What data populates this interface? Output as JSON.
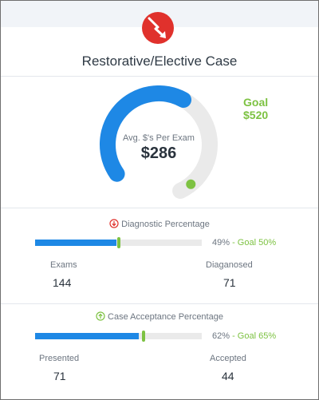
{
  "header": {
    "badge_icon": "falling-arrow-icon",
    "title": "Restorative/Elective Case"
  },
  "gauge": {
    "label": "Avg. $'s Per Exam",
    "value": "$286",
    "goal_label": "Goal",
    "goal_value": "$520",
    "fraction": 0.55,
    "colors": {
      "fill": "#1e88e5",
      "track": "#eaeaea",
      "goal_dot": "#7dc242"
    }
  },
  "diagnostic": {
    "title": "Diagnostic Percentage",
    "status_icon": "down-arrow-circle-icon",
    "status_color": "#e0312c",
    "percent": 49,
    "goal_percent": 50,
    "percent_label": "49%",
    "goal_label": " - Goal 50%",
    "left_label": "Exams",
    "left_value": "144",
    "right_label": "Diaganosed",
    "right_value": "71"
  },
  "acceptance": {
    "title": "Case Acceptance Percentage",
    "status_icon": "up-arrow-circle-icon",
    "status_color": "#7dc242",
    "percent": 62,
    "goal_percent": 65,
    "percent_label": "62%",
    "goal_label": " - Goal 65%",
    "left_label": "Presented",
    "left_value": "71",
    "right_label": "Accepted",
    "right_value": "44"
  },
  "colors": {
    "accent_blue": "#1e88e5",
    "accent_green": "#7dc242",
    "alert_red": "#e0312c"
  }
}
